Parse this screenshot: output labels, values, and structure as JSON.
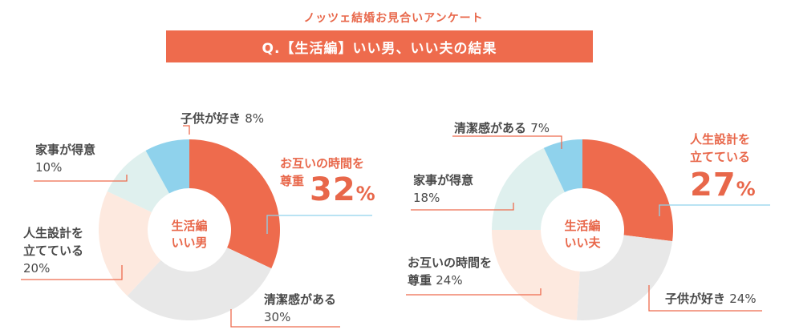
{
  "header": {
    "supertitle": "ノッツェ結婚お見合いアンケート",
    "question": "Q.【生活編】いい男、いい夫の結果"
  },
  "colors": {
    "accent": "#ee6b4d",
    "slice_colors": [
      "#ee6b4d",
      "#e8e8e8",
      "#fde9df",
      "#dff0ee",
      "#8fd2ec"
    ]
  },
  "chart_data": [
    {
      "type": "pie",
      "donut": true,
      "center_label": [
        "生活編",
        "いい男"
      ],
      "slices": [
        {
          "label": "お互いの時間を尊重",
          "value": 32,
          "display": "32%"
        },
        {
          "label": "清潔感がある",
          "value": 30,
          "display": "30%"
        },
        {
          "label": "人生設計を立てている",
          "value": 20,
          "display": "20%"
        },
        {
          "label": "家事が得意",
          "value": 10,
          "display": "10%"
        },
        {
          "label": "子供が好き",
          "value": 8,
          "display": "8%"
        }
      ]
    },
    {
      "type": "pie",
      "donut": true,
      "center_label": [
        "生活編",
        "いい夫"
      ],
      "slices": [
        {
          "label": "人生設計を立てている",
          "value": 27,
          "display": "27%"
        },
        {
          "label": "子供が好き",
          "value": 24,
          "display": "24%"
        },
        {
          "label": "お互いの時間を尊重",
          "value": 24,
          "display": "24%"
        },
        {
          "label": "家事が得意",
          "value": 18,
          "display": "18%"
        },
        {
          "label": "清潔感がある",
          "value": 7,
          "display": "7%"
        }
      ]
    }
  ],
  "labels": {
    "c1": {
      "s0": {
        "line1": "お互いの時間を",
        "line2": "尊重",
        "big": "32",
        "big_unit": "%"
      },
      "s1": {
        "line1": "清潔感がある",
        "pct": "30%"
      },
      "s2": {
        "line1": "人生設計を",
        "line2": "立てている",
        "pct": "20%"
      },
      "s3": {
        "line1": "家事が得意",
        "pct": "10%"
      },
      "s4": {
        "text": "子供が好き",
        "pct": "8%"
      }
    },
    "c2": {
      "s0": {
        "line1": "人生設計を",
        "line2": "立てている",
        "big": "27",
        "big_unit": "%"
      },
      "s1": {
        "text": "子供が好き",
        "pct": "24%"
      },
      "s2": {
        "line1": "お互いの時間を",
        "line2": "尊重",
        "pct": "24%"
      },
      "s3": {
        "line1": "家事が得意",
        "pct": "18%"
      },
      "s4": {
        "text": "清潔感がある",
        "pct": "7%"
      }
    }
  }
}
